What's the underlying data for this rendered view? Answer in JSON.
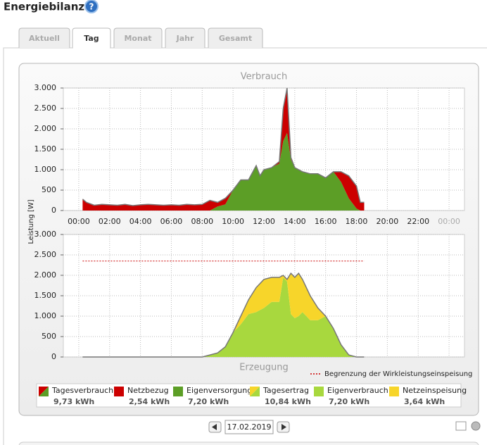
{
  "header": {
    "title": "Energiebilanz"
  },
  "tabs": [
    "Aktuell",
    "Tag",
    "Monat",
    "Jahr",
    "Gesamt"
  ],
  "active_tab": 1,
  "y_axis_label": "Leistung [W]",
  "chart_data": [
    {
      "type": "area",
      "stacked": true,
      "title": "Verbrauch",
      "grid": true,
      "x": [
        "00:15",
        "00:30",
        "01:00",
        "01:30",
        "02:00",
        "02:30",
        "03:00",
        "03:30",
        "04:00",
        "04:30",
        "05:00",
        "05:30",
        "06:00",
        "06:30",
        "07:00",
        "07:30",
        "08:00",
        "08:30",
        "09:00",
        "09:30",
        "10:00",
        "10:30",
        "11:00",
        "11:30",
        "11:45",
        "12:00",
        "12:30",
        "13:00",
        "13:15",
        "13:30",
        "13:45",
        "14:00",
        "14:30",
        "15:00",
        "15:30",
        "16:00",
        "16:30",
        "17:00",
        "17:30",
        "18:00",
        "18:15",
        "18:30"
      ],
      "series": [
        {
          "color": "#5c9e26",
          "values": [
            0,
            0,
            0,
            0,
            0,
            0,
            0,
            0,
            0,
            0,
            0,
            0,
            0,
            0,
            0,
            0,
            0,
            0,
            100,
            150,
            500,
            750,
            750,
            1100,
            850,
            1000,
            1050,
            1150,
            1700,
            1900,
            1250,
            1050,
            950,
            900,
            900,
            800,
            950,
            700,
            300,
            50,
            0,
            0
          ]
        },
        {
          "color": "#cc0000",
          "values": [
            280,
            200,
            130,
            150,
            140,
            130,
            150,
            120,
            140,
            150,
            140,
            130,
            140,
            130,
            150,
            140,
            150,
            250,
            100,
            150,
            0,
            0,
            0,
            0,
            0,
            0,
            0,
            50,
            800,
            1100,
            50,
            0,
            0,
            0,
            0,
            0,
            0,
            250,
            550,
            550,
            200,
            200
          ]
        }
      ],
      "xlim": [
        -1,
        25
      ],
      "xticks": [
        {
          "value": 0,
          "label": "00:00"
        },
        {
          "value": 2,
          "label": "02:00"
        },
        {
          "value": 4,
          "label": "04:00"
        },
        {
          "value": 6,
          "label": "06:00"
        },
        {
          "value": 8,
          "label": "08:00"
        },
        {
          "value": 10,
          "label": "10:00"
        },
        {
          "value": 12,
          "label": "12:00"
        },
        {
          "value": 14,
          "label": "14:00"
        },
        {
          "value": 16,
          "label": "16:00"
        },
        {
          "value": 18,
          "label": "18:00"
        },
        {
          "value": 20,
          "label": "20:00"
        },
        {
          "value": 22,
          "label": "22:00"
        },
        {
          "value": 24,
          "label": "00:00"
        }
      ],
      "ylim": [
        0,
        3000
      ],
      "yticks": [
        0,
        500,
        {
          "value": 1000,
          "label": "1.000"
        },
        {
          "value": 1500,
          "label": "1.500"
        },
        {
          "value": 2000,
          "label": "2.000"
        },
        {
          "value": 2500,
          "label": "2.500"
        },
        {
          "value": 3000,
          "label": "3.000"
        }
      ]
    },
    {
      "type": "area",
      "stacked": true,
      "title": "Erzeugung",
      "grid": true,
      "x": [
        "00:15",
        "08:00",
        "08:30",
        "09:00",
        "09:30",
        "10:00",
        "10:30",
        "11:00",
        "11:30",
        "12:00",
        "12:30",
        "13:00",
        "13:15",
        "13:30",
        "13:45",
        "14:00",
        "14:15",
        "14:30",
        "15:00",
        "15:30",
        "16:00",
        "16:30",
        "17:00",
        "17:30",
        "18:00",
        "18:30"
      ],
      "series": [
        {
          "color": "#a8d83e",
          "values": [
            0,
            0,
            50,
            100,
            250,
            600,
            800,
            1050,
            1100,
            1200,
            1350,
            1350,
            1950,
            1850,
            1050,
            950,
            1000,
            1100,
            900,
            900,
            1000,
            700,
            300,
            50,
            0,
            0
          ]
        },
        {
          "color": "#f7d52a",
          "values": [
            0,
            0,
            0,
            0,
            0,
            0,
            200,
            350,
            600,
            700,
            600,
            600,
            50,
            50,
            1000,
            1000,
            1050,
            800,
            600,
            300,
            0,
            0,
            0,
            0,
            0,
            0
          ]
        }
      ],
      "limit": {
        "value": 2350,
        "color": "#cc0000",
        "label": "Begrenzung der Wirkleistungseinspeisung"
      },
      "xlim": [
        -1,
        25
      ],
      "xticks": [
        0,
        2,
        4,
        6,
        8,
        10,
        12,
        14,
        16,
        18,
        20,
        22,
        24
      ],
      "ylim": [
        0,
        3000
      ],
      "yticks": [
        0,
        500,
        {
          "value": 1000,
          "label": "1.000"
        },
        {
          "value": 1500,
          "label": "1.500"
        },
        {
          "value": 2000,
          "label": "2.000"
        },
        {
          "value": 2500,
          "label": "2.500"
        },
        {
          "value": 3000,
          "label": "3.000"
        }
      ]
    }
  ],
  "legend": [
    {
      "name": "Tagesverbrauch",
      "value_label": "9,73 kWh",
      "colors": [
        "#cc0000",
        "#5c9e26"
      ]
    },
    {
      "name": "Netzbezug",
      "value_label": "2,54 kWh",
      "colors": [
        "#cc0000"
      ]
    },
    {
      "name": "Eigenversorgung",
      "value_label": "7,20 kWh",
      "colors": [
        "#5c9e26"
      ]
    },
    {
      "name": "Tagesertrag",
      "value_label": "10,84 kWh",
      "colors": [
        "#f7d52a",
        "#a8d83e"
      ]
    },
    {
      "name": "Eigenverbrauch",
      "value_label": "7,20 kWh",
      "colors": [
        "#a8d83e"
      ]
    },
    {
      "name": "Netzeinspeisung",
      "value_label": "3,64 kWh",
      "colors": [
        "#f7d52a"
      ]
    }
  ],
  "date": "17.02.2019"
}
